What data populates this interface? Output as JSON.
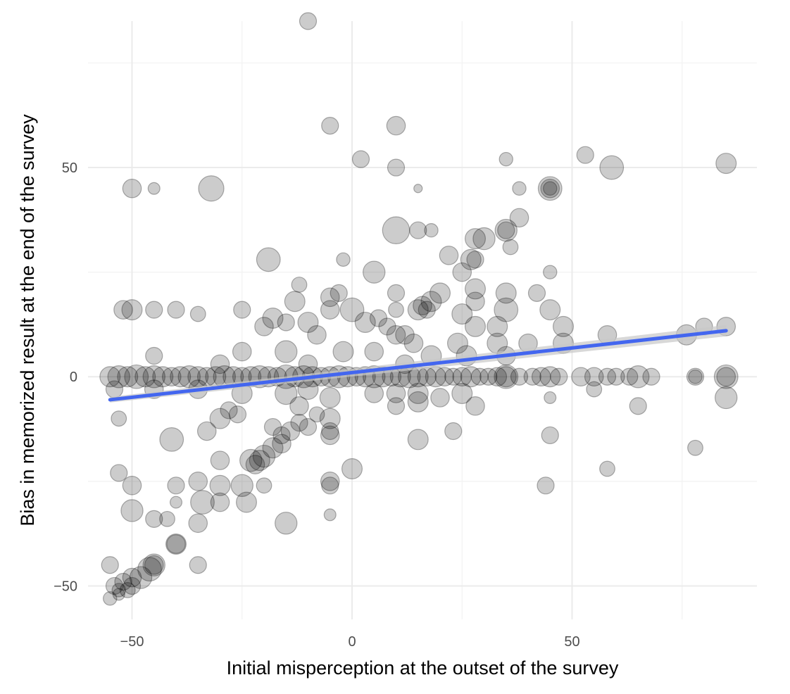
{
  "chart_data": {
    "type": "scatter",
    "xlabel": "Initial misperception at the outset of the survey",
    "ylabel": "Bias in memorized result at the end of the survey",
    "xlim": [
      -60,
      92
    ],
    "ylim": [
      -58,
      85
    ],
    "x_ticks": [
      -50,
      0,
      50
    ],
    "y_ticks": [
      -50,
      0,
      50
    ],
    "x_tick_labels": [
      "−50",
      "0",
      "50"
    ],
    "y_tick_labels": [
      "−50",
      "0",
      "50"
    ],
    "grid": true,
    "legend": "none",
    "point_color": "#000000",
    "point_alpha": 0.2,
    "trend_color": "#4366ef",
    "trend_band_color": "#c8c8c8",
    "trend_line": {
      "x": [
        -55,
        85
      ],
      "y": [
        -5.5,
        11
      ]
    },
    "points": [
      {
        "x": -10,
        "y": 85,
        "s": 1.0
      },
      {
        "x": -5,
        "y": 60,
        "s": 1.0
      },
      {
        "x": 10,
        "y": 60,
        "s": 1.1
      },
      {
        "x": 2,
        "y": 52,
        "s": 1.0
      },
      {
        "x": 10,
        "y": 50,
        "s": 1.0
      },
      {
        "x": 35,
        "y": 52,
        "s": 0.8
      },
      {
        "x": 53,
        "y": 53,
        "s": 1.0
      },
      {
        "x": 59,
        "y": 50,
        "s": 1.4
      },
      {
        "x": 85,
        "y": 51,
        "s": 1.2
      },
      {
        "x": -50,
        "y": 45,
        "s": 1.1
      },
      {
        "x": -45,
        "y": 45,
        "s": 0.7
      },
      {
        "x": -32,
        "y": 45,
        "s": 1.5
      },
      {
        "x": 15,
        "y": 45,
        "s": 0.5
      },
      {
        "x": 38,
        "y": 45,
        "s": 0.8
      },
      {
        "x": 45,
        "y": 45,
        "s": 1.4
      },
      {
        "x": 45,
        "y": 45,
        "s": 1.1
      },
      {
        "x": 45,
        "y": 45,
        "s": 0.8
      },
      {
        "x": 38,
        "y": 38,
        "s": 1.1
      },
      {
        "x": 35,
        "y": 35,
        "s": 1.3
      },
      {
        "x": 35,
        "y": 35,
        "s": 1.0
      },
      {
        "x": 10,
        "y": 35,
        "s": 1.6
      },
      {
        "x": 15,
        "y": 35,
        "s": 1.0
      },
      {
        "x": 18,
        "y": 35,
        "s": 0.8
      },
      {
        "x": 30,
        "y": 33,
        "s": 1.3
      },
      {
        "x": 28,
        "y": 33,
        "s": 1.2
      },
      {
        "x": 36,
        "y": 31,
        "s": 0.9
      },
      {
        "x": 22,
        "y": 29,
        "s": 1.1
      },
      {
        "x": 27,
        "y": 28,
        "s": 1.2
      },
      {
        "x": 28,
        "y": 28,
        "s": 1.0
      },
      {
        "x": -19,
        "y": 28,
        "s": 1.4
      },
      {
        "x": -2,
        "y": 28,
        "s": 0.8
      },
      {
        "x": 5,
        "y": 25,
        "s": 1.3
      },
      {
        "x": 25,
        "y": 25,
        "s": 1.1
      },
      {
        "x": 45,
        "y": 25,
        "s": 0.8
      },
      {
        "x": -12,
        "y": 22,
        "s": 0.9
      },
      {
        "x": 28,
        "y": 21,
        "s": 1.2
      },
      {
        "x": 20,
        "y": 20,
        "s": 1.2
      },
      {
        "x": 35,
        "y": 20,
        "s": 1.2
      },
      {
        "x": 10,
        "y": 20,
        "s": 1.0
      },
      {
        "x": 42,
        "y": 20,
        "s": 1.0
      },
      {
        "x": -3,
        "y": 20,
        "s": 1.0
      },
      {
        "x": -5,
        "y": 19,
        "s": 1.1
      },
      {
        "x": -13,
        "y": 18,
        "s": 1.2
      },
      {
        "x": 18,
        "y": 18,
        "s": 1.2
      },
      {
        "x": 28,
        "y": 18,
        "s": 1.1
      },
      {
        "x": 16,
        "y": 17,
        "s": 1.1
      },
      {
        "x": 15,
        "y": 16,
        "s": 1.2
      },
      {
        "x": 17,
        "y": 16,
        "s": 1.0
      },
      {
        "x": 0,
        "y": 16,
        "s": 1.4
      },
      {
        "x": -52,
        "y": 16,
        "s": 1.1
      },
      {
        "x": -50,
        "y": 16,
        "s": 1.2
      },
      {
        "x": -45,
        "y": 16,
        "s": 1.0
      },
      {
        "x": -40,
        "y": 16,
        "s": 1.0
      },
      {
        "x": -35,
        "y": 15,
        "s": 0.9
      },
      {
        "x": -25,
        "y": 16,
        "s": 1.0
      },
      {
        "x": -5,
        "y": 16,
        "s": 1.1
      },
      {
        "x": 10,
        "y": 16,
        "s": 0.9
      },
      {
        "x": 35,
        "y": 16,
        "s": 1.4
      },
      {
        "x": 45,
        "y": 16,
        "s": 1.2
      },
      {
        "x": 25,
        "y": 15,
        "s": 1.2
      },
      {
        "x": -18,
        "y": 14,
        "s": 1.2
      },
      {
        "x": -15,
        "y": 13,
        "s": 1.0
      },
      {
        "x": -10,
        "y": 13,
        "s": 1.2
      },
      {
        "x": 3,
        "y": 13,
        "s": 1.2
      },
      {
        "x": 6,
        "y": 14,
        "s": 1.0
      },
      {
        "x": 8,
        "y": 12,
        "s": 1.0
      },
      {
        "x": 28,
        "y": 12,
        "s": 1.2
      },
      {
        "x": 33,
        "y": 12,
        "s": 1.2
      },
      {
        "x": 48,
        "y": 12,
        "s": 1.2
      },
      {
        "x": 58,
        "y": 10,
        "s": 1.1
      },
      {
        "x": 76,
        "y": 10,
        "s": 1.2
      },
      {
        "x": 80,
        "y": 12,
        "s": 1.0
      },
      {
        "x": 85,
        "y": 12,
        "s": 1.1
      },
      {
        "x": -20,
        "y": 12,
        "s": 1.1
      },
      {
        "x": -8,
        "y": 10,
        "s": 1.1
      },
      {
        "x": 10,
        "y": 10,
        "s": 1.1
      },
      {
        "x": 12,
        "y": 10,
        "s": 1.1
      },
      {
        "x": 14,
        "y": 8,
        "s": 1.1
      },
      {
        "x": 24,
        "y": 8,
        "s": 1.2
      },
      {
        "x": 33,
        "y": 8,
        "s": 1.2
      },
      {
        "x": 40,
        "y": 8,
        "s": 1.1
      },
      {
        "x": 48,
        "y": 8,
        "s": 1.2
      },
      {
        "x": -25,
        "y": 6,
        "s": 1.1
      },
      {
        "x": -15,
        "y": 6,
        "s": 1.3
      },
      {
        "x": -2,
        "y": 6,
        "s": 1.2
      },
      {
        "x": 5,
        "y": 6,
        "s": 1.1
      },
      {
        "x": 18,
        "y": 5,
        "s": 1.2
      },
      {
        "x": 26,
        "y": 5,
        "s": 1.2
      },
      {
        "x": 35,
        "y": 5,
        "s": 1.1
      },
      {
        "x": -45,
        "y": 5,
        "s": 1.0
      },
      {
        "x": -30,
        "y": 3,
        "s": 1.1
      },
      {
        "x": -10,
        "y": 3,
        "s": 1.1
      },
      {
        "x": 12,
        "y": 3,
        "s": 1.1
      },
      {
        "x": -55,
        "y": 0,
        "s": 1.2
      },
      {
        "x": -53,
        "y": 0,
        "s": 1.3
      },
      {
        "x": -51,
        "y": 0,
        "s": 1.2
      },
      {
        "x": -49,
        "y": 0,
        "s": 1.4
      },
      {
        "x": -47,
        "y": 0,
        "s": 1.2
      },
      {
        "x": -45,
        "y": 0,
        "s": 1.3
      },
      {
        "x": -43,
        "y": 0,
        "s": 1.2
      },
      {
        "x": -41,
        "y": 0,
        "s": 1.1
      },
      {
        "x": -39,
        "y": 0,
        "s": 1.2
      },
      {
        "x": -37,
        "y": 0,
        "s": 1.3
      },
      {
        "x": -35,
        "y": 0,
        "s": 1.2
      },
      {
        "x": -33,
        "y": 0,
        "s": 1.1
      },
      {
        "x": -31,
        "y": 0,
        "s": 1.2
      },
      {
        "x": -29,
        "y": 0,
        "s": 1.3
      },
      {
        "x": -27,
        "y": 0,
        "s": 1.2
      },
      {
        "x": -25,
        "y": 0,
        "s": 1.1
      },
      {
        "x": -23,
        "y": 0,
        "s": 1.2
      },
      {
        "x": -21,
        "y": 0,
        "s": 1.3
      },
      {
        "x": -19,
        "y": 0,
        "s": 1.2
      },
      {
        "x": -17,
        "y": 0,
        "s": 1.1
      },
      {
        "x": -15,
        "y": 0,
        "s": 1.4
      },
      {
        "x": -13,
        "y": 0,
        "s": 1.2
      },
      {
        "x": -11,
        "y": 0,
        "s": 1.3
      },
      {
        "x": -9,
        "y": 0,
        "s": 1.2
      },
      {
        "x": -7,
        "y": 0,
        "s": 1.1
      },
      {
        "x": -5,
        "y": 0,
        "s": 1.2
      },
      {
        "x": -3,
        "y": 0,
        "s": 1.3
      },
      {
        "x": -1,
        "y": 0,
        "s": 1.2
      },
      {
        "x": 1,
        "y": 0,
        "s": 1.1
      },
      {
        "x": 3,
        "y": 0,
        "s": 1.2
      },
      {
        "x": 5,
        "y": 0,
        "s": 1.3
      },
      {
        "x": 7,
        "y": 0,
        "s": 1.2
      },
      {
        "x": 9,
        "y": 0,
        "s": 1.1
      },
      {
        "x": 11,
        "y": 0,
        "s": 1.2
      },
      {
        "x": 13,
        "y": 0,
        "s": 1.3
      },
      {
        "x": 15,
        "y": 0,
        "s": 1.2
      },
      {
        "x": 17,
        "y": 0,
        "s": 1.1
      },
      {
        "x": 19,
        "y": 0,
        "s": 1.2
      },
      {
        "x": 21,
        "y": 0,
        "s": 1.1
      },
      {
        "x": 23,
        "y": 0,
        "s": 1.0
      },
      {
        "x": 25,
        "y": 0,
        "s": 1.1
      },
      {
        "x": 27,
        "y": 0,
        "s": 1.2
      },
      {
        "x": 29,
        "y": 0,
        "s": 1.0
      },
      {
        "x": 31,
        "y": 0,
        "s": 1.0
      },
      {
        "x": 33,
        "y": 0,
        "s": 1.1
      },
      {
        "x": 35,
        "y": 0,
        "s": 1.4
      },
      {
        "x": 35,
        "y": 0,
        "s": 1.2
      },
      {
        "x": 38,
        "y": 0,
        "s": 1.0
      },
      {
        "x": 41,
        "y": 0,
        "s": 1.0
      },
      {
        "x": 43,
        "y": 0,
        "s": 1.1
      },
      {
        "x": 45,
        "y": 0,
        "s": 1.2
      },
      {
        "x": 47,
        "y": 0,
        "s": 1.0
      },
      {
        "x": 52,
        "y": 0,
        "s": 1.1
      },
      {
        "x": 55,
        "y": 0,
        "s": 1.1
      },
      {
        "x": 58,
        "y": 0,
        "s": 1.0
      },
      {
        "x": 60,
        "y": 0,
        "s": 1.0
      },
      {
        "x": 63,
        "y": 0,
        "s": 1.0
      },
      {
        "x": 65,
        "y": 0,
        "s": 1.3
      },
      {
        "x": 68,
        "y": 0,
        "s": 1.0
      },
      {
        "x": 78,
        "y": 0,
        "s": 0.8
      },
      {
        "x": 78,
        "y": 0,
        "s": 1.0
      },
      {
        "x": 85,
        "y": 0,
        "s": 1.4
      },
      {
        "x": 85,
        "y": 0,
        "s": 1.1
      },
      {
        "x": -54,
        "y": -3,
        "s": 1.0
      },
      {
        "x": -45,
        "y": -3,
        "s": 1.1
      },
      {
        "x": -35,
        "y": -3,
        "s": 1.1
      },
      {
        "x": -25,
        "y": -4,
        "s": 1.2
      },
      {
        "x": -15,
        "y": -4,
        "s": 1.3
      },
      {
        "x": -10,
        "y": -3,
        "s": 1.2
      },
      {
        "x": -5,
        "y": -5,
        "s": 1.2
      },
      {
        "x": 5,
        "y": -4,
        "s": 1.1
      },
      {
        "x": 10,
        "y": -4,
        "s": 1.1
      },
      {
        "x": 15,
        "y": -4,
        "s": 1.2
      },
      {
        "x": 20,
        "y": -5,
        "s": 1.1
      },
      {
        "x": 25,
        "y": -4,
        "s": 1.2
      },
      {
        "x": 55,
        "y": -3,
        "s": 0.9
      },
      {
        "x": 85,
        "y": -5,
        "s": 1.3
      },
      {
        "x": 45,
        "y": -5,
        "s": 0.7
      },
      {
        "x": 10,
        "y": -7,
        "s": 1.0
      },
      {
        "x": 15,
        "y": -6,
        "s": 1.2
      },
      {
        "x": 28,
        "y": -7,
        "s": 1.1
      },
      {
        "x": 65,
        "y": -7,
        "s": 1.0
      },
      {
        "x": -12,
        "y": -7,
        "s": 1.1
      },
      {
        "x": -28,
        "y": -8,
        "s": 1.0
      },
      {
        "x": -53,
        "y": -10,
        "s": 0.9
      },
      {
        "x": -30,
        "y": -10,
        "s": 1.2
      },
      {
        "x": -26,
        "y": -9,
        "s": 1.0
      },
      {
        "x": -5,
        "y": -10,
        "s": 1.2
      },
      {
        "x": -8,
        "y": -9,
        "s": 0.9
      },
      {
        "x": -10,
        "y": -12,
        "s": 1.0
      },
      {
        "x": -12,
        "y": -11,
        "s": 1.0
      },
      {
        "x": -14,
        "y": -13,
        "s": 1.1
      },
      {
        "x": -16,
        "y": -14,
        "s": 1.0
      },
      {
        "x": -18,
        "y": -12,
        "s": 1.0
      },
      {
        "x": -33,
        "y": -13,
        "s": 1.1
      },
      {
        "x": -5,
        "y": -13,
        "s": 1.0
      },
      {
        "x": -5,
        "y": -14,
        "s": 1.1
      },
      {
        "x": 23,
        "y": -13,
        "s": 1.0
      },
      {
        "x": 45,
        "y": -14,
        "s": 1.0
      },
      {
        "x": -41,
        "y": -15,
        "s": 1.4
      },
      {
        "x": 15,
        "y": -15,
        "s": 1.2
      },
      {
        "x": -16,
        "y": -16,
        "s": 1.1
      },
      {
        "x": -18,
        "y": -17,
        "s": 1.2
      },
      {
        "x": -20,
        "y": -19,
        "s": 1.3
      },
      {
        "x": -21,
        "y": -20,
        "s": 1.2
      },
      {
        "x": -22,
        "y": -21,
        "s": 1.1
      },
      {
        "x": -23,
        "y": -20,
        "s": 1.3
      },
      {
        "x": 78,
        "y": -17,
        "s": 0.9
      },
      {
        "x": -30,
        "y": -20,
        "s": 1.1
      },
      {
        "x": 0,
        "y": -22,
        "s": 1.2
      },
      {
        "x": 58,
        "y": -22,
        "s": 0.9
      },
      {
        "x": -53,
        "y": -23,
        "s": 1.0
      },
      {
        "x": -50,
        "y": -26,
        "s": 1.1
      },
      {
        "x": -40,
        "y": -26,
        "s": 1.0
      },
      {
        "x": -35,
        "y": -25,
        "s": 1.1
      },
      {
        "x": -30,
        "y": -26,
        "s": 1.2
      },
      {
        "x": -25,
        "y": -26,
        "s": 1.3
      },
      {
        "x": -20,
        "y": -26,
        "s": 0.9
      },
      {
        "x": -5,
        "y": -25,
        "s": 1.1
      },
      {
        "x": -5,
        "y": -26,
        "s": 1.0
      },
      {
        "x": 44,
        "y": -26,
        "s": 1.0
      },
      {
        "x": -34,
        "y": -30,
        "s": 1.4
      },
      {
        "x": -40,
        "y": -30,
        "s": 0.7
      },
      {
        "x": -30,
        "y": -30,
        "s": 1.1
      },
      {
        "x": -24,
        "y": -30,
        "s": 1.2
      },
      {
        "x": -50,
        "y": -32,
        "s": 1.3
      },
      {
        "x": -45,
        "y": -34,
        "s": 1.0
      },
      {
        "x": -42,
        "y": -34,
        "s": 0.9
      },
      {
        "x": -35,
        "y": -35,
        "s": 1.1
      },
      {
        "x": -5,
        "y": -33,
        "s": 0.7
      },
      {
        "x": -15,
        "y": -35,
        "s": 1.3
      },
      {
        "x": -40,
        "y": -40,
        "s": 1.2
      },
      {
        "x": -40,
        "y": -40,
        "s": 1.1
      },
      {
        "x": -45,
        "y": -45,
        "s": 1.3
      },
      {
        "x": -45,
        "y": -45,
        "s": 1.1
      },
      {
        "x": -46,
        "y": -46,
        "s": 1.4
      },
      {
        "x": -35,
        "y": -45,
        "s": 1.0
      },
      {
        "x": -55,
        "y": -45,
        "s": 1.0
      },
      {
        "x": -48,
        "y": -48,
        "s": 1.3
      },
      {
        "x": -50,
        "y": -48,
        "s": 1.1
      },
      {
        "x": -52,
        "y": -49,
        "s": 1.0
      },
      {
        "x": -54,
        "y": -50,
        "s": 1.0
      },
      {
        "x": -51,
        "y": -51,
        "s": 0.9
      },
      {
        "x": -50,
        "y": -50,
        "s": 1.0
      },
      {
        "x": -53,
        "y": -51,
        "s": 0.8
      },
      {
        "x": -55,
        "y": -53,
        "s": 0.8
      },
      {
        "x": -53,
        "y": -52,
        "s": 0.7
      }
    ]
  }
}
